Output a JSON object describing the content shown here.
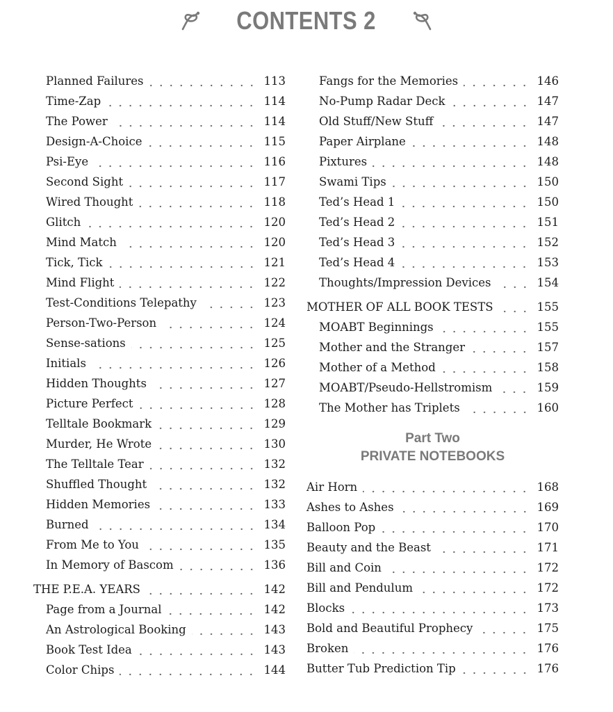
{
  "header": {
    "title": "CONTENTS 2",
    "left_icon": "knot-ornament-icon",
    "right_icon": "knot-ornament-icon",
    "color": "#7a7a7a"
  },
  "columns": [
    {
      "sections": [
        {
          "items": [
            {
              "title": "Planned Failures",
              "page": "113"
            },
            {
              "title": "Time-Zap",
              "page": "114"
            },
            {
              "title": "The Power",
              "page": "114"
            },
            {
              "title": "Design-A-Choice",
              "page": "115"
            },
            {
              "title": "Psi-Eye",
              "page": "116"
            },
            {
              "title": "Second Sight",
              "page": "117"
            },
            {
              "title": "Wired Thought",
              "page": "118"
            },
            {
              "title": "Glitch",
              "page": "120"
            },
            {
              "title": "Mind Match",
              "page": "120"
            },
            {
              "title": "Tick, Tick",
              "page": "121"
            },
            {
              "title": "Mind Flight",
              "page": "122"
            },
            {
              "title": "Test-Conditions Telepathy",
              "page": "123"
            },
            {
              "title": "Person-Two-Person",
              "page": "124"
            },
            {
              "title": "Sense-sations",
              "page": "125"
            },
            {
              "title": "Initials",
              "page": "126"
            },
            {
              "title": "Hidden Thoughts",
              "page": "127"
            },
            {
              "title": "Picture Perfect",
              "page": "128"
            },
            {
              "title": "Telltale Bookmark",
              "page": "129"
            },
            {
              "title": "Murder, He Wrote",
              "page": "130"
            },
            {
              "title": "The Telltale Tear",
              "page": "132"
            },
            {
              "title": "Shuffled Thought",
              "page": "132"
            },
            {
              "title": "Hidden Memories",
              "page": "133"
            },
            {
              "title": "Burned",
              "page": "134"
            },
            {
              "title": "From Me to You",
              "page": "135"
            },
            {
              "title": "In Memory of Bascom",
              "page": "136"
            }
          ]
        },
        {
          "heading": {
            "title": "THE P.E.A. YEARS",
            "page": "142"
          },
          "items": [
            {
              "title": "Page from a Journal",
              "page": "142"
            },
            {
              "title": "An Astrological Booking",
              "page": "143"
            },
            {
              "title": "Book Test Idea",
              "page": "143"
            },
            {
              "title": "Color Chips",
              "page": "144"
            }
          ]
        }
      ]
    },
    {
      "sections": [
        {
          "items": [
            {
              "title": "Fangs for the Memories",
              "page": "146"
            },
            {
              "title": "No-Pump Radar Deck",
              "page": "147"
            },
            {
              "title": "Old Stuff/New Stuff",
              "page": "147"
            },
            {
              "title": "Paper Airplane",
              "page": "148"
            },
            {
              "title": "Pixtures",
              "page": "148"
            },
            {
              "title": "Swami Tips",
              "page": "150"
            },
            {
              "title": "Ted’s Head 1",
              "page": "150"
            },
            {
              "title": "Ted’s Head 2",
              "page": "151"
            },
            {
              "title": "Ted’s Head 3",
              "page": "152"
            },
            {
              "title": "Ted’s Head 4",
              "page": "153"
            },
            {
              "title": "Thoughts/Impression Devices",
              "page": "154"
            }
          ]
        },
        {
          "heading": {
            "title": "MOTHER OF ALL BOOK TESTS",
            "page": "155"
          },
          "items": [
            {
              "title": "MOABT Beginnings",
              "page": "155"
            },
            {
              "title": "Mother and the Stranger",
              "page": "157"
            },
            {
              "title": "Mother of a Method",
              "page": "158"
            },
            {
              "title": "MOABT/Pseudo-Hellstromism",
              "page": "159"
            },
            {
              "title": "The Mother has Triplets",
              "page": "160"
            }
          ]
        },
        {
          "part": {
            "label": "Part Two",
            "title": "PRIVATE NOTEBOOKS"
          },
          "flat": true,
          "items": [
            {
              "title": "Air Horn",
              "page": "168"
            },
            {
              "title": "Ashes to Ashes",
              "page": "169"
            },
            {
              "title": "Balloon Pop",
              "page": "170"
            },
            {
              "title": "Beauty and the Beast",
              "page": "171"
            },
            {
              "title": "Bill and Coin",
              "page": "172"
            },
            {
              "title": "Bill and Pendulum",
              "page": "172"
            },
            {
              "title": "Blocks",
              "page": "173"
            },
            {
              "title": "Bold and Beautiful Prophecy",
              "page": "175"
            },
            {
              "title": "Broken",
              "page": "176"
            },
            {
              "title": "Butter Tub Prediction Tip",
              "page": "176"
            }
          ]
        }
      ]
    }
  ]
}
